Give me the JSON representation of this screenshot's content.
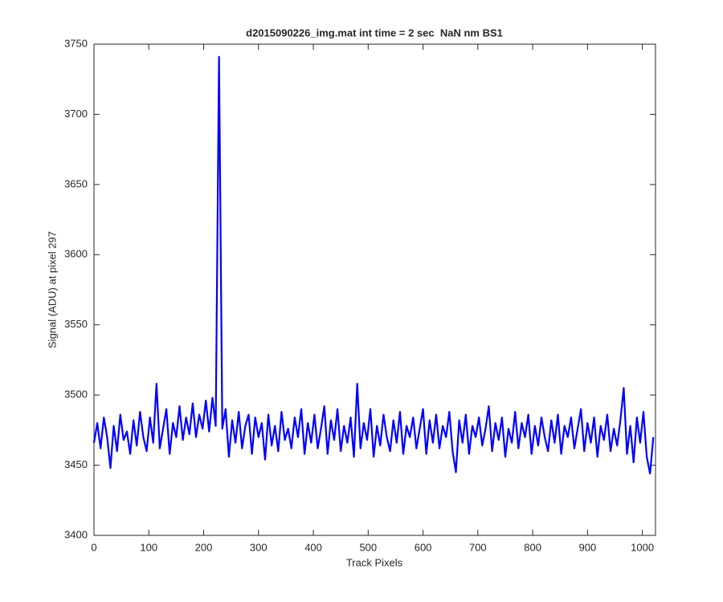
{
  "chart_data": {
    "type": "line",
    "title": "d2015090226_img.mat int time = 2 sec  NaN nm BS1",
    "x_label": "Track Pixels",
    "y_label": "Signal (ADU) at pixel 297",
    "color": "#0000ff",
    "xlim": [
      0,
      1024
    ],
    "ylim": [
      3400,
      3750
    ],
    "xticks": [
      0,
      100,
      200,
      300,
      400,
      500,
      600,
      700,
      800,
      900,
      1000
    ],
    "yticks": [
      3400,
      3450,
      3500,
      3550,
      3600,
      3650,
      3700,
      3750
    ],
    "x": [
      0,
      6,
      12,
      18,
      24,
      30,
      36,
      42,
      48,
      54,
      60,
      66,
      72,
      78,
      84,
      90,
      96,
      102,
      108,
      114,
      120,
      126,
      132,
      138,
      144,
      150,
      156,
      162,
      168,
      174,
      180,
      186,
      192,
      198,
      204,
      210,
      216,
      222,
      228,
      234,
      240,
      246,
      252,
      258,
      264,
      270,
      276,
      282,
      288,
      294,
      300,
      306,
      312,
      318,
      324,
      330,
      336,
      342,
      348,
      354,
      360,
      366,
      372,
      378,
      384,
      390,
      396,
      402,
      408,
      414,
      420,
      426,
      432,
      438,
      444,
      450,
      456,
      462,
      468,
      474,
      480,
      486,
      492,
      498,
      504,
      510,
      516,
      522,
      528,
      534,
      540,
      546,
      552,
      558,
      564,
      570,
      576,
      582,
      588,
      594,
      600,
      606,
      612,
      618,
      624,
      630,
      636,
      642,
      648,
      654,
      660,
      666,
      672,
      678,
      684,
      690,
      696,
      702,
      708,
      714,
      720,
      726,
      732,
      738,
      744,
      750,
      756,
      762,
      768,
      774,
      780,
      786,
      792,
      798,
      804,
      810,
      816,
      822,
      828,
      834,
      840,
      846,
      852,
      858,
      864,
      870,
      876,
      882,
      888,
      894,
      900,
      906,
      912,
      918,
      924,
      930,
      936,
      942,
      948,
      954,
      960,
      966,
      972,
      978,
      984,
      990,
      996,
      1002,
      1008,
      1014,
      1020
    ],
    "values": [
      3466,
      3480,
      3462,
      3484,
      3470,
      3448,
      3478,
      3460,
      3486,
      3468,
      3474,
      3458,
      3482,
      3464,
      3488,
      3470,
      3460,
      3484,
      3466,
      3508,
      3462,
      3476,
      3490,
      3458,
      3480,
      3470,
      3492,
      3468,
      3484,
      3472,
      3494,
      3470,
      3486,
      3476,
      3496,
      3474,
      3498,
      3478,
      3741,
      3476,
      3490,
      3456,
      3482,
      3466,
      3488,
      3462,
      3478,
      3486,
      3458,
      3484,
      3470,
      3480,
      3454,
      3486,
      3464,
      3478,
      3460,
      3488,
      3468,
      3476,
      3462,
      3484,
      3470,
      3490,
      3458,
      3480,
      3466,
      3486,
      3462,
      3476,
      3492,
      3458,
      3482,
      3468,
      3490,
      3460,
      3478,
      3466,
      3484,
      3456,
      3508,
      3462,
      3480,
      3468,
      3490,
      3456,
      3478,
      3464,
      3486,
      3470,
      3460,
      3482,
      3466,
      3488,
      3458,
      3478,
      3470,
      3484,
      3462,
      3476,
      3490,
      3458,
      3482,
      3466,
      3486,
      3462,
      3478,
      3470,
      3488,
      3460,
      3445,
      3482,
      3466,
      3486,
      3458,
      3478,
      3470,
      3484,
      3464,
      3476,
      3492,
      3460,
      3480,
      3468,
      3484,
      3456,
      3476,
      3466,
      3488,
      3462,
      3480,
      3470,
      3486,
      3458,
      3478,
      3464,
      3484,
      3470,
      3460,
      3482,
      3466,
      3486,
      3458,
      3478,
      3470,
      3484,
      3462,
      3476,
      3490,
      3460,
      3480,
      3466,
      3484,
      3456,
      3478,
      3468,
      3486,
      3460,
      3476,
      3464,
      3482,
      3505,
      3458,
      3478,
      3452,
      3484,
      3466,
      3488,
      3456,
      3444,
      3470
    ]
  }
}
